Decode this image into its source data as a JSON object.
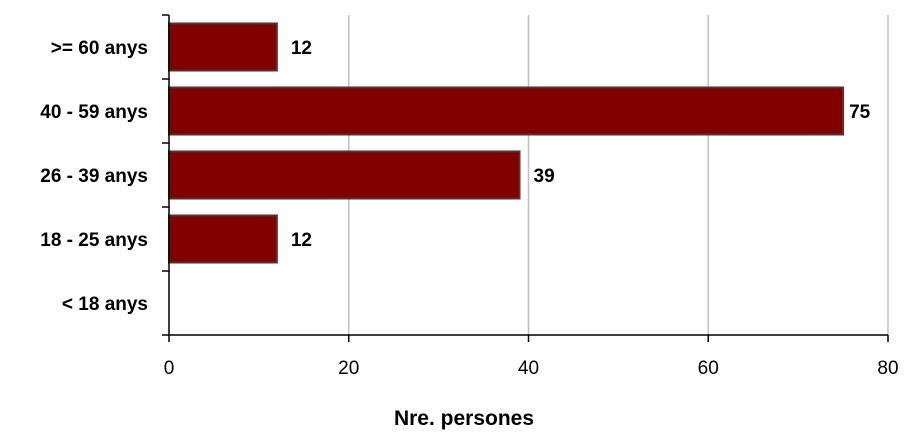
{
  "chart_data": {
    "type": "bar",
    "orientation": "horizontal",
    "categories": [
      ">= 60 anys",
      "40 - 59 anys",
      "26 - 39 anys",
      "18 - 25 anys",
      "< 18 anys"
    ],
    "values": [
      12,
      75,
      39,
      12,
      null
    ],
    "data_labels": [
      "12",
      "75",
      "39",
      "12",
      ""
    ],
    "xlabel": "Nre. persones",
    "ylabel": "",
    "xlim": [
      0,
      80
    ],
    "x_ticks": [
      0,
      20,
      40,
      60,
      80
    ],
    "x_tick_labels": [
      "0",
      "20",
      "40",
      "60",
      "80"
    ],
    "grid": "vertical",
    "legend": "none",
    "bar_color": "#800000",
    "bar_edge_color": "#5a3030",
    "grid_color": "#c0c0c0"
  }
}
